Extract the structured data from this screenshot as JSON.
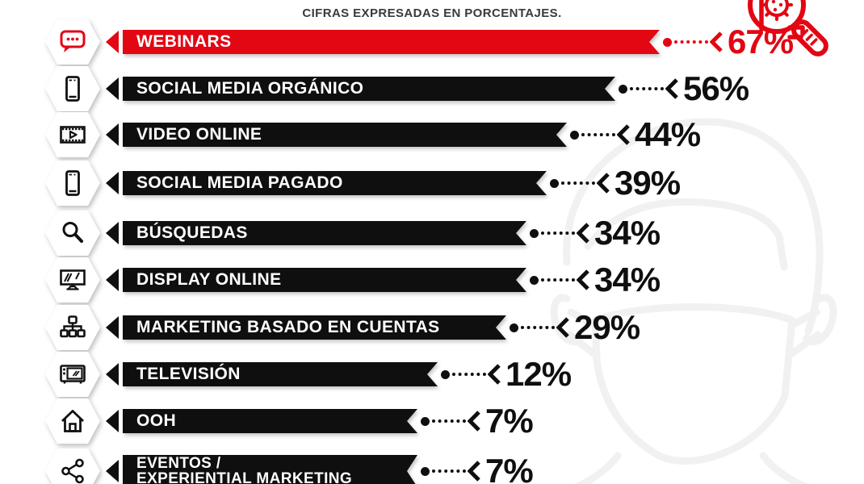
{
  "header": {
    "subtitle": "CIFRAS EXPRESADAS EN PORCENTAJES."
  },
  "colors": {
    "accent_red": "#e30613",
    "bar_black": "#0f0f0f",
    "text_dark": "#3a3a3a",
    "watermark_gray": "#f1f1f1"
  },
  "decorations": {
    "top_right_icon": "virus-magnifier-icon",
    "background_watermark": "man-with-face-mask-watermark"
  },
  "chart_data": {
    "type": "bar",
    "orientation": "horizontal",
    "unit": "%",
    "subtitle": "CIFRAS EXPRESADAS EN PORCENTAJES.",
    "categories": [
      "WEBINARS",
      "SOCIAL MEDIA ORGÁNICO",
      "VIDEO ONLINE",
      "SOCIAL MEDIA PAGADO",
      "BÚSQUEDAS",
      "DISPLAY ONLINE",
      "MARKETING BASADO EN CUENTAS",
      "TELEVISIÓN",
      "OOH",
      "EVENTOS / EXPERIENTIAL MARKETING"
    ],
    "values": [
      67,
      56,
      44,
      39,
      34,
      34,
      29,
      12,
      7,
      7
    ],
    "value_labels": [
      "67%",
      "56%",
      "44%",
      "39%",
      "34%",
      "34%",
      "29%",
      "12%",
      "7%",
      "7%"
    ],
    "highlight": {
      "index": 0,
      "color": "#e30613"
    },
    "icon_names": [
      "speech-bubble",
      "smartphone",
      "video-film-strip",
      "smartphone",
      "magnifier",
      "display-monitor",
      "account-hierarchy",
      "television",
      "house",
      "share-network"
    ],
    "legend": "none",
    "grid": "off"
  },
  "rows": [
    {
      "label": "WEBINARS",
      "value_label": "67%",
      "icon": "speech-bubble",
      "variant": "red"
    },
    {
      "label": "SOCIAL MEDIA ORGÁNICO",
      "value_label": "56%",
      "icon": "smartphone",
      "variant": "black"
    },
    {
      "label": "VIDEO ONLINE",
      "value_label": "44%",
      "icon": "video-film-strip",
      "variant": "black"
    },
    {
      "label": "SOCIAL MEDIA PAGADO",
      "value_label": "39%",
      "icon": "smartphone",
      "variant": "black"
    },
    {
      "label": "BÚSQUEDAS",
      "value_label": "34%",
      "icon": "magnifier",
      "variant": "black"
    },
    {
      "label": "DISPLAY ONLINE",
      "value_label": "34%",
      "icon": "display-monitor",
      "variant": "black"
    },
    {
      "label": "MARKETING BASADO EN CUENTAS",
      "value_label": "29%",
      "icon": "account-hierarchy",
      "variant": "black"
    },
    {
      "label": "TELEVISIÓN",
      "value_label": "12%",
      "icon": "television",
      "variant": "black"
    },
    {
      "label": "OOH",
      "value_label": "7%",
      "icon": "house",
      "variant": "black"
    },
    {
      "label": "EVENTOS /\nEXPERIENTIAL MARKETING",
      "value_label": "7%",
      "icon": "share-network",
      "variant": "black",
      "two_lines": true
    }
  ]
}
